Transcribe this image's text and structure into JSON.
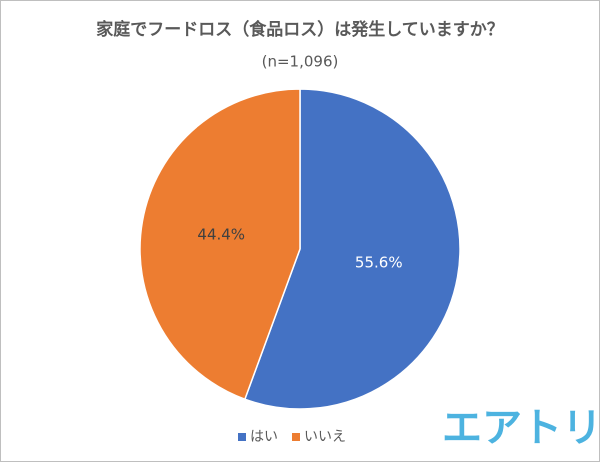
{
  "chart_data": {
    "type": "pie",
    "title": "家庭でフードロス（食品ロス）は発生していますか？",
    "subtitle": "(n=1,096)",
    "categories": [
      "はい",
      "いいえ"
    ],
    "values": [
      55.6,
      44.4
    ],
    "value_labels": [
      "55.6%",
      "44.4%"
    ],
    "colors": [
      "#4472c4",
      "#ed7d31"
    ],
    "legend": "bottom",
    "watermark": "エアトリ"
  }
}
